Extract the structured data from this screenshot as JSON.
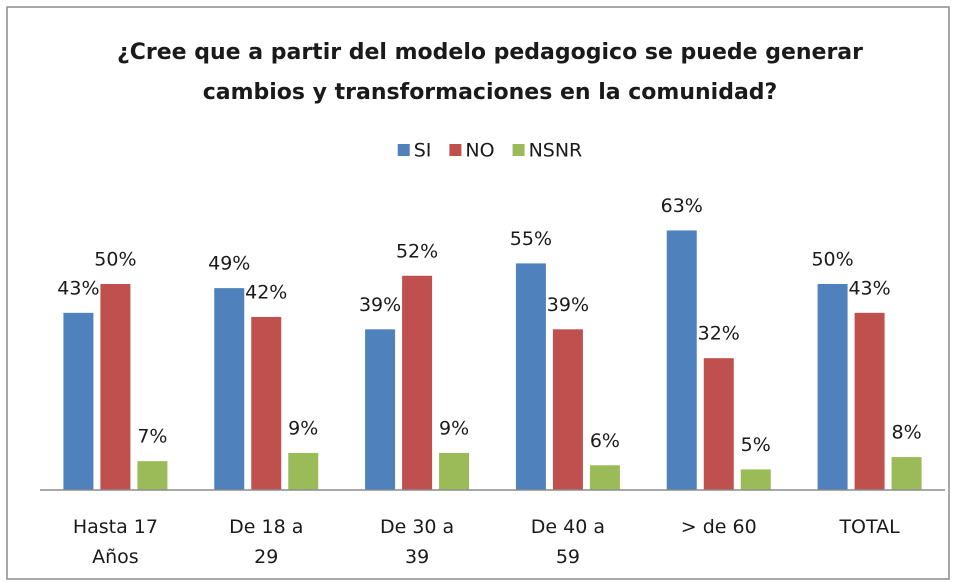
{
  "chart_data": {
    "type": "bar",
    "title": "¿Cree que a partir del modelo pedagogico se puede generar cambios y transformaciones en la comunidad?",
    "categories": [
      "Hasta 17 Años",
      "De 18 a 29",
      "De 30 a 39",
      "De 40 a 59",
      "> de 60",
      "TOTAL"
    ],
    "series": [
      {
        "name": "SI",
        "color": "#4f81bd",
        "values": [
          43,
          49,
          39,
          55,
          63,
          50
        ],
        "value_labels": [
          "43%",
          "49%",
          "39%",
          "55%",
          "63%",
          "50%"
        ]
      },
      {
        "name": "NO",
        "color": "#c0504d",
        "values": [
          50,
          42,
          52,
          39,
          32,
          43
        ],
        "value_labels": [
          "50%",
          "42%",
          "52%",
          "39%",
          "32%",
          "43%"
        ]
      },
      {
        "name": "NSNR",
        "color": "#9bbb59",
        "values": [
          7,
          9,
          9,
          6,
          5,
          8
        ],
        "value_labels": [
          "7%",
          "9%",
          "9%",
          "6%",
          "5%",
          "8%"
        ]
      }
    ],
    "legend": "top"
  }
}
